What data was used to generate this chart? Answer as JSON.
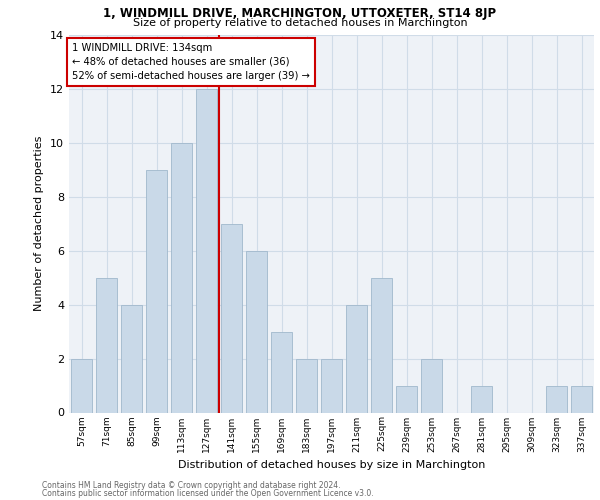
{
  "title1": "1, WINDMILL DRIVE, MARCHINGTON, UTTOXETER, ST14 8JP",
  "title2": "Size of property relative to detached houses in Marchington",
  "xlabel": "Distribution of detached houses by size in Marchington",
  "ylabel": "Number of detached properties",
  "categories": [
    "57sqm",
    "71sqm",
    "85sqm",
    "99sqm",
    "113sqm",
    "127sqm",
    "141sqm",
    "155sqm",
    "169sqm",
    "183sqm",
    "197sqm",
    "211sqm",
    "225sqm",
    "239sqm",
    "253sqm",
    "267sqm",
    "281sqm",
    "295sqm",
    "309sqm",
    "323sqm",
    "337sqm"
  ],
  "values": [
    2,
    5,
    4,
    9,
    10,
    12,
    7,
    6,
    3,
    2,
    2,
    4,
    5,
    1,
    2,
    0,
    1,
    0,
    0,
    1,
    1
  ],
  "bar_color": "#c9d9e8",
  "bar_edgecolor": "#a0b8cc",
  "vline_x_index": 6,
  "vline_color": "#cc0000",
  "annotation_text": "1 WINDMILL DRIVE: 134sqm\n← 48% of detached houses are smaller (36)\n52% of semi-detached houses are larger (39) →",
  "annotation_box_edgecolor": "#cc0000",
  "footnote1": "Contains HM Land Registry data © Crown copyright and database right 2024.",
  "footnote2": "Contains public sector information licensed under the Open Government Licence v3.0.",
  "ylim": [
    0,
    14
  ],
  "yticks": [
    0,
    2,
    4,
    6,
    8,
    10,
    12,
    14
  ],
  "grid_color": "#d0dce8",
  "bg_color": "#eef2f7"
}
